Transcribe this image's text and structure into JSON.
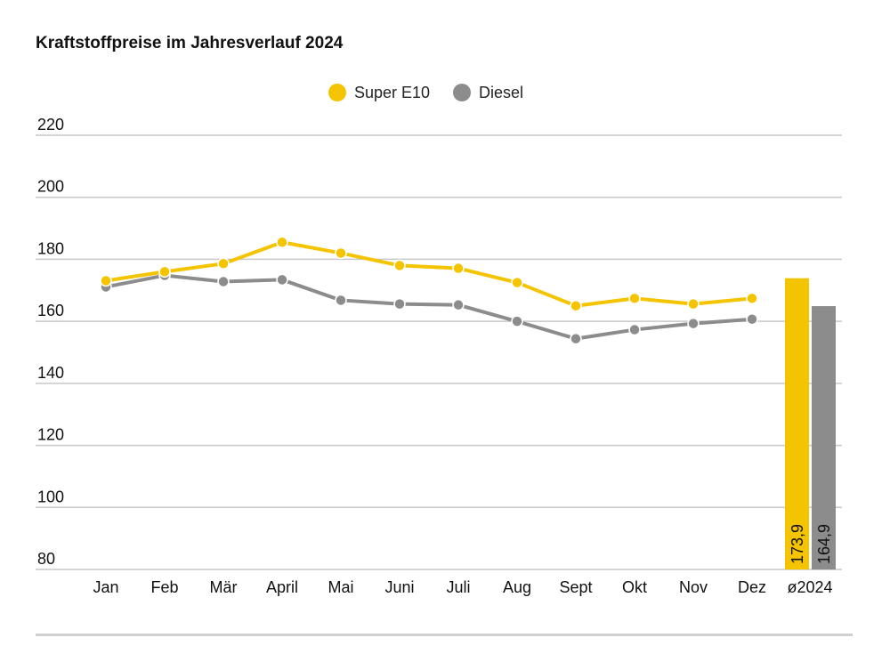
{
  "chart_data": {
    "type": "line",
    "title": "Kraftstoffpreise im Jahresverlauf 2024",
    "xlabel": "",
    "ylabel": "",
    "ylim": [
      80,
      220
    ],
    "yticks": [
      80,
      100,
      120,
      140,
      160,
      180,
      200,
      220
    ],
    "grid": true,
    "legend_position": "top-center",
    "categories": [
      "Jan",
      "Feb",
      "Mär",
      "April",
      "Mai",
      "Juni",
      "Juli",
      "Aug",
      "Sept",
      "Okt",
      "Nov",
      "Dez"
    ],
    "series": [
      {
        "name": "Super E10",
        "color": "#f5c400",
        "values": [
          173.1,
          176.0,
          178.6,
          185.5,
          182.0,
          178.0,
          177.1,
          172.5,
          165.0,
          167.4,
          165.6,
          167.4
        ]
      },
      {
        "name": "Diesel",
        "color": "#8c8c8c",
        "values": [
          171.1,
          174.8,
          172.8,
          173.4,
          166.8,
          165.6,
          165.3,
          160.0,
          154.4,
          157.3,
          159.3,
          160.7
        ]
      }
    ],
    "average": {
      "label": "ø2024",
      "bars": [
        {
          "series": "Super E10",
          "value": 173.9,
          "label": "173,9"
        },
        {
          "series": "Diesel",
          "value": 164.9,
          "label": "164,9"
        }
      ]
    }
  }
}
